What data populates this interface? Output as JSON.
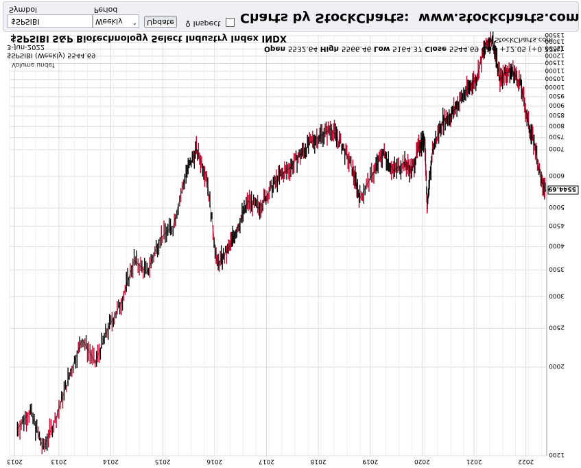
{
  "chart_data": {
    "type": "line",
    "title": "$SPSIBI S&P Biotechnology Select Industry Index INDX",
    "symbol": "$SPSIBI",
    "period": "Weekly",
    "date": "3-Jun-2022",
    "legend": "$SPSIBI (Weekly) 5544.69",
    "volume_note": "Volume undef",
    "ohlc": {
      "open": "5532.64",
      "high": "5566.46",
      "low": "5164.37",
      "close": "5544.69",
      "chg": "+12.05 (+0.22%)"
    },
    "last_value": "5544.69",
    "x_ticks": [
      "2013",
      "2013",
      "2014",
      "2015",
      "2016",
      "2017",
      "2018",
      "2019",
      "2020",
      "2021",
      "2022"
    ],
    "y_ticks": [
      "1200",
      "2000",
      "2500",
      "3000",
      "3500",
      "4000",
      "4500",
      "5000",
      "6000",
      "7000",
      "7500",
      "8000",
      "8500",
      "9000",
      "9500",
      "10000",
      "10500",
      "11000",
      "11500",
      "12000",
      "12500",
      "13000",
      "13500"
    ],
    "ylim": [
      1200,
      13500
    ],
    "y_scale": "log",
    "grid": true,
    "x": [
      2012.15,
      2012.4,
      2012.65,
      2012.9,
      2013.15,
      2013.4,
      2013.65,
      2013.9,
      2014.15,
      2014.4,
      2014.65,
      2014.9,
      2015.15,
      2015.4,
      2015.6,
      2015.8,
      2016.0,
      2016.2,
      2016.4,
      2016.6,
      2016.8,
      2017.0,
      2017.2,
      2017.4,
      2017.6,
      2017.8,
      2018.0,
      2018.2,
      2018.4,
      2018.6,
      2018.75,
      2019.0,
      2019.2,
      2019.4,
      2019.6,
      2019.75,
      2019.9,
      2020.0,
      2020.05,
      2020.15,
      2020.35,
      2020.5,
      2020.65,
      2020.85,
      2021.0,
      2021.15,
      2021.3,
      2021.45,
      2021.55,
      2021.7,
      2021.85,
      2022.0,
      2022.12,
      2022.25,
      2022.33
    ],
    "values": [
      1400,
      1550,
      1250,
      1500,
      1900,
      2350,
      2050,
      2500,
      2900,
      3700,
      3450,
      4200,
      4500,
      6100,
      7000,
      6000,
      3600,
      3900,
      4500,
      5200,
      5000,
      5500,
      6000,
      6300,
      6800,
      7300,
      7600,
      7900,
      7200,
      6300,
      5300,
      6100,
      6900,
      6200,
      6500,
      6200,
      7200,
      7500,
      5000,
      7000,
      8300,
      8500,
      9200,
      10000,
      10600,
      12500,
      13400,
      10500,
      10900,
      11000,
      10200,
      8100,
      7200,
      5800,
      5545
    ]
  }
}
